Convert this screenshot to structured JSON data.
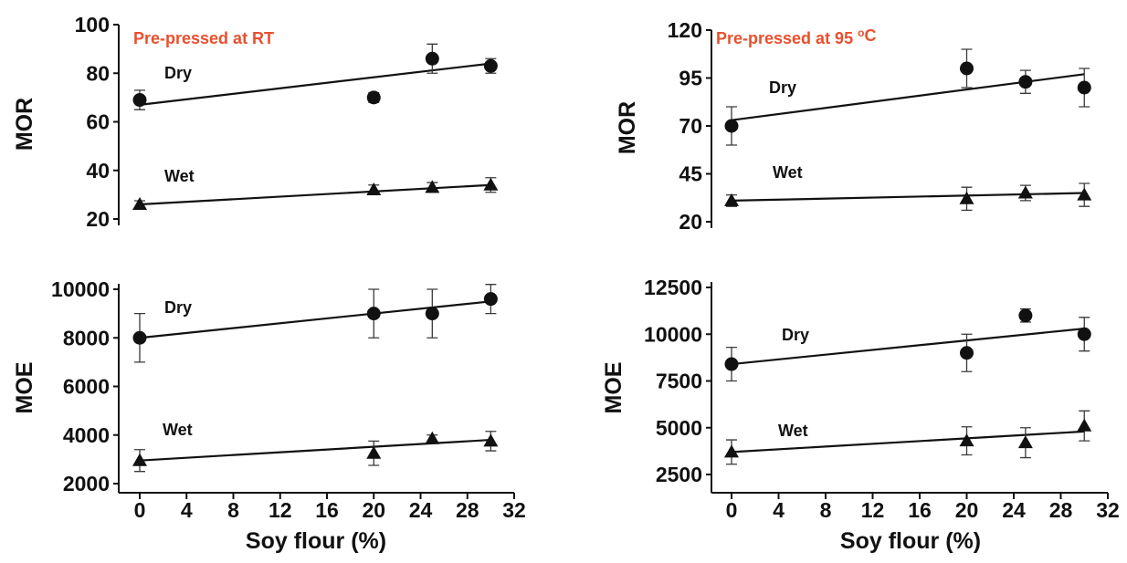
{
  "colors": {
    "annotation": "#E8502D",
    "marks": "#111111",
    "error_bars": "#3a3a3a"
  },
  "chart_data": [
    {
      "type": "scatter",
      "annotation": "Pre-pressed at RT",
      "ylabel": "MOR",
      "xlim": [
        0,
        32
      ],
      "ylim": [
        20,
        100
      ],
      "yticks": [
        20,
        40,
        60,
        80,
        100
      ],
      "grid": false,
      "series": [
        {
          "name": "Dry",
          "marker": "circle",
          "x": [
            0,
            20,
            25,
            30
          ],
          "y": [
            69,
            70,
            86,
            83
          ],
          "error": [
            4,
            2,
            6,
            3
          ],
          "trend": {
            "x": [
              0,
              30
            ],
            "y": [
              67,
              84
            ]
          }
        },
        {
          "name": "Wet",
          "marker": "triangle",
          "x": [
            0,
            20,
            25,
            30
          ],
          "y": [
            26,
            32,
            33,
            34
          ],
          "error": [
            1.5,
            2,
            2,
            3
          ],
          "trend": {
            "x": [
              0,
              30
            ],
            "y": [
              26,
              34
            ]
          }
        }
      ]
    },
    {
      "type": "scatter",
      "annotation": "Pre-pressed at 95 ",
      "annotation_superscript": "o",
      "annotation_suffix": "C",
      "ylabel": "MOR",
      "xlim": [
        0,
        32
      ],
      "ylim": [
        20,
        120
      ],
      "yticks": [
        20,
        45,
        70,
        95,
        120
      ],
      "grid": false,
      "series": [
        {
          "name": "Dry",
          "marker": "circle",
          "x": [
            0,
            20,
            25,
            30
          ],
          "y": [
            70,
            100,
            93,
            90
          ],
          "error": [
            10,
            10,
            6,
            10
          ],
          "trend": {
            "x": [
              0,
              30
            ],
            "y": [
              73,
              97
            ]
          }
        },
        {
          "name": "Wet",
          "marker": "triangle",
          "x": [
            0,
            20,
            25,
            30
          ],
          "y": [
            31,
            32,
            35,
            34
          ],
          "error": [
            3,
            6,
            4,
            6
          ],
          "trend": {
            "x": [
              0,
              30
            ],
            "y": [
              31,
              35
            ]
          }
        }
      ]
    },
    {
      "type": "scatter",
      "ylabel": "MOE",
      "xlabel": "Soy flour (%)",
      "xlim": [
        0,
        32
      ],
      "xticks": [
        0,
        4,
        8,
        12,
        16,
        20,
        24,
        28,
        32
      ],
      "ylim": [
        2000,
        10000
      ],
      "yticks": [
        2000,
        4000,
        6000,
        8000,
        10000
      ],
      "grid": false,
      "series": [
        {
          "name": "Dry",
          "marker": "circle",
          "x": [
            0,
            20,
            25,
            30
          ],
          "y": [
            8000,
            9000,
            9000,
            9600
          ],
          "error": [
            1000,
            1000,
            1000,
            600
          ],
          "trend": {
            "x": [
              0,
              30
            ],
            "y": [
              8000,
              9500
            ]
          }
        },
        {
          "name": "Wet",
          "marker": "triangle",
          "x": [
            0,
            20,
            25,
            30
          ],
          "y": [
            2950,
            3250,
            3850,
            3750
          ],
          "error": [
            450,
            500,
            150,
            400
          ],
          "trend": {
            "x": [
              0,
              30
            ],
            "y": [
              2950,
              3800
            ]
          }
        }
      ]
    },
    {
      "type": "scatter",
      "ylabel": "MOE",
      "xlabel": "Soy flour (%)",
      "xlim": [
        0,
        32
      ],
      "xticks": [
        0,
        4,
        8,
        12,
        16,
        20,
        24,
        28,
        32
      ],
      "ylim": [
        2500,
        12500
      ],
      "yticks": [
        2500,
        5000,
        7500,
        10000,
        12500
      ],
      "grid": false,
      "series": [
        {
          "name": "Dry",
          "marker": "circle",
          "x": [
            0,
            20,
            25,
            30
          ],
          "y": [
            8400,
            9000,
            11000,
            10000
          ],
          "error": [
            900,
            1000,
            350,
            900
          ],
          "trend": {
            "x": [
              0,
              30
            ],
            "y": [
              8400,
              10300
            ]
          }
        },
        {
          "name": "Wet",
          "marker": "triangle",
          "x": [
            0,
            20,
            25,
            30
          ],
          "y": [
            3700,
            4300,
            4200,
            5100
          ],
          "error": [
            650,
            750,
            800,
            800
          ],
          "trend": {
            "x": [
              0,
              30
            ],
            "y": [
              3700,
              4800
            ]
          }
        }
      ]
    }
  ]
}
